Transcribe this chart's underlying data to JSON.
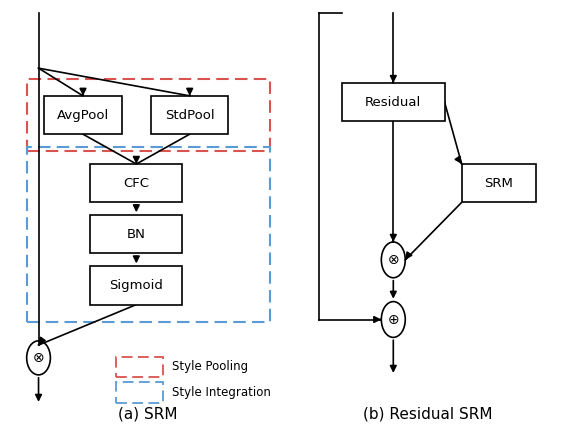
{
  "title_a": "(a) SRM",
  "title_b": "(b) Residual SRM",
  "legend_red_text": "Style Pooling",
  "legend_blue_text": "Style Integration",
  "red_color": "#d9534f",
  "blue_color": "#5b9bd5",
  "box_color": "#000000",
  "bg_color": "#ffffff",
  "font_size": 9.5,
  "title_font_size": 11
}
